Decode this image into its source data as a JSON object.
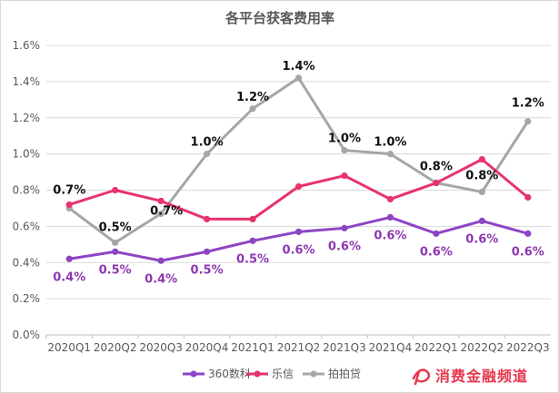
{
  "chart_data": {
    "type": "line",
    "title": "各平台获客费用率",
    "categories": [
      "2020Q1",
      "2020Q2",
      "2020Q3",
      "2020Q4",
      "2021Q1",
      "2021Q2",
      "2021Q3",
      "2021Q4",
      "2022Q1",
      "2022Q2",
      "2022Q3"
    ],
    "ylim": [
      0,
      1.6
    ],
    "yticks": [
      "0.0%",
      "0.2%",
      "0.4%",
      "0.6%",
      "0.8%",
      "1.0%",
      "1.2%",
      "1.4%",
      "1.6%"
    ],
    "y_tick_values": [
      0,
      0.2,
      0.4,
      0.6,
      0.8,
      1.0,
      1.2,
      1.4,
      1.6
    ],
    "grid": true,
    "legend_position": "bottom",
    "series": [
      {
        "name": "360数科",
        "color": "#8e44c4",
        "values": [
          0.42,
          0.46,
          0.41,
          0.46,
          0.52,
          0.57,
          0.59,
          0.65,
          0.56,
          0.63,
          0.56
        ],
        "labels": [
          "0.4%",
          "0.5%",
          "0.4%",
          "0.5%",
          "0.5%",
          "0.6%",
          "0.6%",
          "0.6%",
          "0.6%",
          "0.6%",
          "0.6%"
        ]
      },
      {
        "name": "乐信",
        "color": "#e8336b",
        "values": [
          0.72,
          0.8,
          0.74,
          0.64,
          0.64,
          0.82,
          0.88,
          0.75,
          0.84,
          0.97,
          0.76
        ],
        "labels": []
      },
      {
        "name": "拍拍贷",
        "color": "#a6a6a6",
        "values": [
          0.7,
          0.51,
          0.67,
          1.0,
          1.25,
          1.42,
          1.02,
          1.0,
          0.84,
          0.79,
          1.18
        ],
        "labels": [
          "0.7%",
          "0.5%",
          "0.7%",
          "1.0%",
          "1.2%",
          "1.4%",
          "1.0%",
          "1.0%",
          "0.8%",
          "0.8%",
          "1.2%"
        ]
      }
    ]
  },
  "brand": {
    "name": "消费金融频道"
  }
}
